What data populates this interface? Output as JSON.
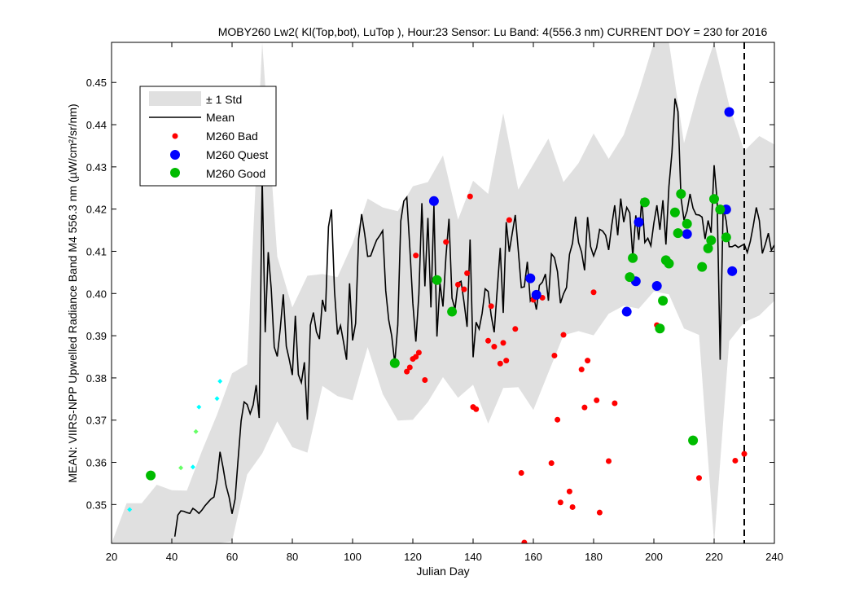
{
  "chart_data": {
    "type": "scatter",
    "title": "MOBY260   Lw2( Kl(Top,bot), LuTop ),   Hour:23 Sensor: Lu Band: 4(556.3 nm)   CURRENT DOY = 230 for 2016",
    "xlabel": "Julian Day",
    "ylabel": "MEAN: VIIRS-NPP Upwelled Radiance Band M4 556.3 nm (µW/cm²/sr/nm)",
    "xlim": [
      20,
      240
    ],
    "ylim": [
      0.3408,
      0.4595
    ],
    "xticks": [
      20,
      40,
      60,
      80,
      100,
      120,
      140,
      160,
      180,
      200,
      220,
      240
    ],
    "yticks": [
      0.35,
      0.36,
      0.37,
      0.38,
      0.39,
      0.4,
      0.41,
      0.42,
      0.43,
      0.44,
      0.45
    ],
    "current_doy": 230,
    "legend": {
      "position": "top-left",
      "entries": [
        "± 1 Std",
        "Mean",
        "M260 Bad",
        "M260 Quest",
        "M260 Good"
      ]
    },
    "colors": {
      "std_band": "#e0e0e0",
      "mean": "#000000",
      "bad": "#ff0000",
      "quest": "#0000ff",
      "good": "#00bb00",
      "prior_bad": "#00ffff",
      "prior_good": "#66ff66"
    },
    "mean": [
      [
        41,
        0.3424
      ],
      [
        42,
        0.3475
      ],
      [
        43,
        0.3485
      ],
      [
        44,
        0.3484
      ],
      [
        45,
        0.3481
      ],
      [
        46,
        0.3479
      ],
      [
        47,
        0.3491
      ],
      [
        48,
        0.3486
      ],
      [
        49,
        0.3479
      ],
      [
        50,
        0.3487
      ],
      [
        51,
        0.3497
      ],
      [
        52,
        0.3505
      ],
      [
        53,
        0.3513
      ],
      [
        54,
        0.3518
      ],
      [
        55,
        0.3558
      ],
      [
        56,
        0.3625
      ],
      [
        57,
        0.3588
      ],
      [
        58,
        0.3545
      ],
      [
        59,
        0.3518
      ],
      [
        60,
        0.3478
      ],
      [
        61,
        0.3513
      ],
      [
        62,
        0.3607
      ],
      [
        63,
        0.3698
      ],
      [
        64,
        0.3743
      ],
      [
        65,
        0.3737
      ],
      [
        66,
        0.3715
      ],
      [
        67,
        0.3736
      ],
      [
        68,
        0.3783
      ],
      [
        69,
        0.3705
      ],
      [
        70,
        0.4275
      ],
      [
        71,
        0.3908
      ],
      [
        72,
        0.4098
      ],
      [
        73,
        0.4011
      ],
      [
        74,
        0.3873
      ],
      [
        75,
        0.3851
      ],
      [
        76,
        0.3917
      ],
      [
        77,
        0.3998
      ],
      [
        78,
        0.3875
      ],
      [
        79,
        0.3843
      ],
      [
        80,
        0.3807
      ],
      [
        81,
        0.3947
      ],
      [
        82,
        0.3808
      ],
      [
        83,
        0.3789
      ],
      [
        84,
        0.3837
      ],
      [
        85,
        0.3701
      ],
      [
        86,
        0.3925
      ],
      [
        87,
        0.3955
      ],
      [
        88,
        0.3909
      ],
      [
        89,
        0.3892
      ],
      [
        90,
        0.3985
      ],
      [
        91,
        0.3957
      ],
      [
        92,
        0.4158
      ],
      [
        93,
        0.4199
      ],
      [
        94,
        0.4006
      ],
      [
        95,
        0.3903
      ],
      [
        96,
        0.3924
      ],
      [
        97,
        0.3885
      ],
      [
        98,
        0.3843
      ],
      [
        99,
        0.4024
      ],
      [
        100,
        0.3889
      ],
      [
        101,
        0.3929
      ],
      [
        102,
        0.4129
      ],
      [
        103,
        0.4188
      ],
      [
        104,
        0.4142
      ],
      [
        105,
        0.4088
      ],
      [
        106,
        0.4089
      ],
      [
        107,
        0.4109
      ],
      [
        108,
        0.4127
      ],
      [
        109,
        0.4137
      ],
      [
        110,
        0.4149
      ],
      [
        111,
        0.4007
      ],
      [
        112,
        0.3937
      ],
      [
        113,
        0.3899
      ],
      [
        114,
        0.3835
      ],
      [
        115,
        0.3925
      ],
      [
        116,
        0.4172
      ],
      [
        117,
        0.4219
      ],
      [
        118,
        0.4228
      ],
      [
        119,
        0.4108
      ],
      [
        120,
        0.3977
      ],
      [
        121,
        0.3886
      ],
      [
        122,
        0.3998
      ],
      [
        123,
        0.4214
      ],
      [
        124,
        0.4017
      ],
      [
        125,
        0.4179
      ],
      [
        126,
        0.3967
      ],
      [
        127,
        0.4209
      ],
      [
        128,
        0.3898
      ],
      [
        129,
        0.4025
      ],
      [
        130,
        0.3969
      ],
      [
        131,
        0.4089
      ],
      [
        132,
        0.4177
      ],
      [
        133,
        0.3989
      ],
      [
        134,
        0.3963
      ],
      [
        135,
        0.4025
      ],
      [
        136,
        0.4029
      ],
      [
        137,
        0.3979
      ],
      [
        138,
        0.3921
      ],
      [
        139,
        0.4128
      ],
      [
        140,
        0.3849
      ],
      [
        141,
        0.3932
      ],
      [
        142,
        0.3916
      ],
      [
        143,
        0.3953
      ],
      [
        144,
        0.4011
      ],
      [
        145,
        0.4005
      ],
      [
        146,
        0.3948
      ],
      [
        147,
        0.3908
      ],
      [
        148,
        0.4008
      ],
      [
        149,
        0.4108
      ],
      [
        150,
        0.3954
      ],
      [
        151,
        0.4169
      ],
      [
        152,
        0.4099
      ],
      [
        153,
        0.4143
      ],
      [
        154,
        0.4186
      ],
      [
        155,
        0.4102
      ],
      [
        156,
        0.4014
      ],
      [
        157,
        0.4016
      ],
      [
        158,
        0.4075
      ],
      [
        159,
        0.3983
      ],
      [
        160,
        0.3997
      ],
      [
        161,
        0.3962
      ],
      [
        162,
        0.4019
      ],
      [
        163,
        0.4027
      ],
      [
        164,
        0.4046
      ],
      [
        165,
        0.3983
      ],
      [
        166,
        0.4094
      ],
      [
        167,
        0.4085
      ],
      [
        168,
        0.4052
      ],
      [
        169,
        0.3977
      ],
      [
        170,
        0.3999
      ],
      [
        171,
        0.4014
      ],
      [
        172,
        0.4093
      ],
      [
        173,
        0.4119
      ],
      [
        174,
        0.4182
      ],
      [
        175,
        0.4121
      ],
      [
        176,
        0.4098
      ],
      [
        177,
        0.4055
      ],
      [
        178,
        0.4181
      ],
      [
        179,
        0.4111
      ],
      [
        180,
        0.4089
      ],
      [
        181,
        0.4109
      ],
      [
        182,
        0.4152
      ],
      [
        183,
        0.4148
      ],
      [
        184,
        0.4138
      ],
      [
        185,
        0.4103
      ],
      [
        186,
        0.4161
      ],
      [
        187,
        0.4209
      ],
      [
        188,
        0.4138
      ],
      [
        189,
        0.4225
      ],
      [
        190,
        0.4169
      ],
      [
        191,
        0.4204
      ],
      [
        192,
        0.4191
      ],
      [
        193,
        0.4087
      ],
      [
        194,
        0.4185
      ],
      [
        195,
        0.4127
      ],
      [
        196,
        0.4225
      ],
      [
        197,
        0.4121
      ],
      [
        198,
        0.4131
      ],
      [
        199,
        0.4113
      ],
      [
        200,
        0.4167
      ],
      [
        201,
        0.4209
      ],
      [
        202,
        0.4151
      ],
      [
        203,
        0.4221
      ],
      [
        204,
        0.4116
      ],
      [
        205,
        0.4254
      ],
      [
        206,
        0.4334
      ],
      [
        207,
        0.4462
      ],
      [
        208,
        0.4431
      ],
      [
        209,
        0.4227
      ],
      [
        210,
        0.4174
      ],
      [
        211,
        0.4195
      ],
      [
        212,
        0.4236
      ],
      [
        213,
        0.4202
      ],
      [
        214,
        0.4187
      ],
      [
        215,
        0.4186
      ],
      [
        216,
        0.4181
      ],
      [
        217,
        0.4129
      ],
      [
        218,
        0.4173
      ],
      [
        219,
        0.4144
      ],
      [
        220,
        0.4304
      ],
      [
        221,
        0.4219
      ],
      [
        222,
        0.3843
      ],
      [
        223,
        0.4205
      ],
      [
        224,
        0.4172
      ],
      [
        225,
        0.4111
      ],
      [
        226,
        0.4111
      ],
      [
        227,
        0.4115
      ],
      [
        228,
        0.4109
      ],
      [
        229,
        0.4113
      ],
      [
        230,
        0.4117
      ],
      [
        231,
        0.4097
      ],
      [
        232,
        0.4123
      ],
      [
        233,
        0.4161
      ],
      [
        234,
        0.4204
      ],
      [
        235,
        0.4173
      ],
      [
        236,
        0.4095
      ],
      [
        237,
        0.4117
      ],
      [
        238,
        0.4143
      ],
      [
        239,
        0.4102
      ],
      [
        240,
        0.4115
      ]
    ],
    "std_band": [
      [
        20,
        0.3408,
        0.3408
      ],
      [
        25,
        0.3408,
        0.3503
      ],
      [
        30,
        0.3408,
        0.3503
      ],
      [
        35,
        0.3408,
        0.3547
      ],
      [
        40,
        0.3408,
        0.3534
      ],
      [
        45,
        0.3408,
        0.3533
      ],
      [
        50,
        0.3408,
        0.3627
      ],
      [
        55,
        0.3408,
        0.3713
      ],
      [
        60,
        0.3413,
        0.3811
      ],
      [
        65,
        0.3571,
        0.3832
      ],
      [
        70,
        0.3621,
        0.4595
      ],
      [
        75,
        0.3697,
        0.4088
      ],
      [
        80,
        0.3636,
        0.3967
      ],
      [
        85,
        0.3623,
        0.4042
      ],
      [
        90,
        0.3781,
        0.4046
      ],
      [
        95,
        0.3757,
        0.4039
      ],
      [
        100,
        0.3747,
        0.4118
      ],
      [
        105,
        0.3873,
        0.4225
      ],
      [
        110,
        0.3762,
        0.4204
      ],
      [
        115,
        0.3699,
        0.4195
      ],
      [
        120,
        0.3701,
        0.4254
      ],
      [
        125,
        0.3743,
        0.4264
      ],
      [
        130,
        0.3802,
        0.4327
      ],
      [
        135,
        0.3753,
        0.4175
      ],
      [
        140,
        0.3784,
        0.4267
      ],
      [
        145,
        0.3692,
        0.4236
      ],
      [
        150,
        0.3776,
        0.4427
      ],
      [
        155,
        0.3778,
        0.4246
      ],
      [
        160,
        0.3724,
        0.4306
      ],
      [
        165,
        0.3813,
        0.4367
      ],
      [
        170,
        0.3901,
        0.4264
      ],
      [
        175,
        0.3911,
        0.4309
      ],
      [
        180,
        0.3901,
        0.4379
      ],
      [
        185,
        0.3952,
        0.4319
      ],
      [
        190,
        0.3971,
        0.4376
      ],
      [
        195,
        0.3964,
        0.4478
      ],
      [
        200,
        0.4005,
        0.4595
      ],
      [
        205,
        0.3998,
        0.4595
      ],
      [
        210,
        0.3917,
        0.4356
      ],
      [
        215,
        0.3902,
        0.4487
      ],
      [
        220,
        0.3408,
        0.4595
      ],
      [
        225,
        0.3887,
        0.4446
      ],
      [
        230,
        0.3932,
        0.4338
      ],
      [
        235,
        0.3948,
        0.4373
      ],
      [
        240,
        0.3983,
        0.4353
      ]
    ],
    "bad_points": [
      [
        118,
        0.3815
      ],
      [
        119,
        0.3825
      ],
      [
        120,
        0.3845
      ],
      [
        121,
        0.409
      ],
      [
        121,
        0.385
      ],
      [
        122,
        0.386
      ],
      [
        124,
        0.3795
      ],
      [
        131,
        0.4122
      ],
      [
        135,
        0.4021
      ],
      [
        137,
        0.401
      ],
      [
        138,
        0.4048
      ],
      [
        139,
        0.423
      ],
      [
        140,
        0.3731
      ],
      [
        141,
        0.3726
      ],
      [
        145,
        0.3888
      ],
      [
        146,
        0.397
      ],
      [
        147,
        0.3874
      ],
      [
        149,
        0.3834
      ],
      [
        150,
        0.3883
      ],
      [
        151,
        0.3841
      ],
      [
        152,
        0.4174
      ],
      [
        154,
        0.3916
      ],
      [
        156,
        0.3575
      ],
      [
        157,
        0.341
      ],
      [
        160,
        0.3985
      ],
      [
        163,
        0.399
      ],
      [
        166,
        0.3598
      ],
      [
        167,
        0.3853
      ],
      [
        168,
        0.3701
      ],
      [
        169,
        0.3505
      ],
      [
        170,
        0.3902
      ],
      [
        172,
        0.3531
      ],
      [
        173,
        0.3494
      ],
      [
        176,
        0.382
      ],
      [
        177,
        0.373
      ],
      [
        178,
        0.3841
      ],
      [
        180,
        0.4003
      ],
      [
        181,
        0.3747
      ],
      [
        182,
        0.3481
      ],
      [
        185,
        0.3603
      ],
      [
        187,
        0.374
      ],
      [
        201,
        0.3925
      ],
      [
        215,
        0.3563
      ],
      [
        227,
        0.3604
      ],
      [
        230,
        0.362
      ]
    ],
    "quest_points": [
      [
        127,
        0.4219
      ],
      [
        159,
        0.4036
      ],
      [
        161,
        0.3997
      ],
      [
        191,
        0.3957
      ],
      [
        194,
        0.4029
      ],
      [
        195,
        0.4169
      ],
      [
        201,
        0.4018
      ],
      [
        211,
        0.4141
      ],
      [
        224,
        0.4199
      ],
      [
        225,
        0.443
      ],
      [
        226,
        0.4053
      ]
    ],
    "good_points": [
      [
        33,
        0.3569
      ],
      [
        114,
        0.3835
      ],
      [
        128,
        0.4032
      ],
      [
        133,
        0.3957
      ],
      [
        192,
        0.4039
      ],
      [
        193,
        0.4084
      ],
      [
        197,
        0.4216
      ],
      [
        202,
        0.3917
      ],
      [
        203,
        0.3983
      ],
      [
        204,
        0.4079
      ],
      [
        205,
        0.4071
      ],
      [
        207,
        0.4192
      ],
      [
        208,
        0.4143
      ],
      [
        209,
        0.4236
      ],
      [
        211,
        0.4165
      ],
      [
        213,
        0.3652
      ],
      [
        216,
        0.4063
      ],
      [
        218,
        0.4107
      ],
      [
        219,
        0.4126
      ],
      [
        220,
        0.4224
      ],
      [
        222,
        0.4199
      ],
      [
        224,
        0.4133
      ]
    ],
    "prior_bad_points": [
      [
        26,
        0.3488
      ],
      [
        47,
        0.3589
      ],
      [
        49,
        0.3731
      ],
      [
        55,
        0.3751
      ],
      [
        56,
        0.3792
      ]
    ],
    "prior_good_points": [
      [
        43,
        0.3587
      ],
      [
        48,
        0.3673
      ]
    ]
  }
}
